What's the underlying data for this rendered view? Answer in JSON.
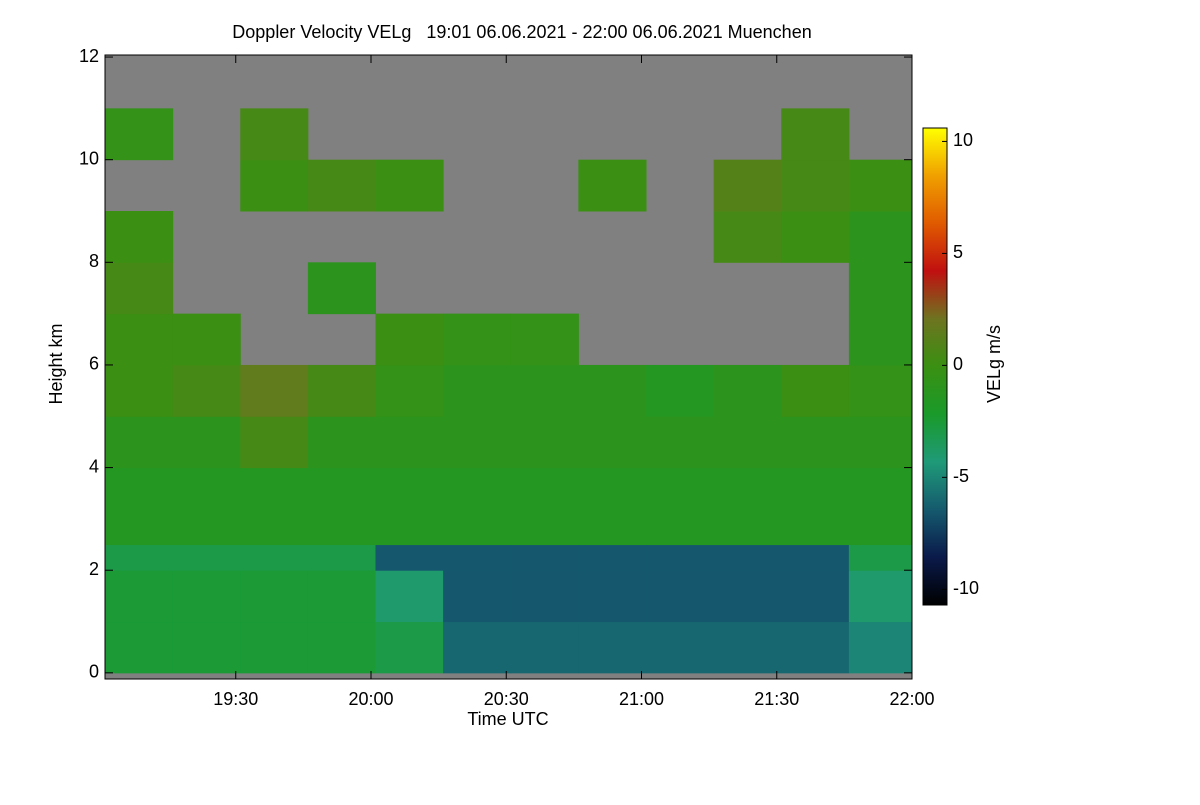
{
  "chart_data": {
    "type": "heatmap",
    "title": "Doppler Velocity VELg   19:01 06.06.2021 - 22:00 06.06.2021 Muenchen",
    "x_label": "Time UTC",
    "y_label": "Height km",
    "colorbar_label": "VELg m/s",
    "background": "#808080",
    "xlim": [
      1141,
      1320
    ],
    "xticks": [
      {
        "value": 1170,
        "label": "19:30"
      },
      {
        "value": 1200,
        "label": "20:00"
      },
      {
        "value": 1230,
        "label": "20:30"
      },
      {
        "value": 1260,
        "label": "21:00"
      },
      {
        "value": 1290,
        "label": "21:30"
      },
      {
        "value": 1320,
        "label": "22:00"
      }
    ],
    "ylim": [
      -0.12,
      12.04
    ],
    "yticks": [
      0,
      2,
      4,
      6,
      8,
      10,
      12
    ],
    "zlim": [
      -10.7,
      10.6
    ],
    "zticks": [
      -10,
      -5,
      0,
      5,
      10
    ],
    "colormap": [
      "#000000",
      "#0a1a4a",
      "#155a6e",
      "#1f9a78",
      "#1a9a2a",
      "#3a9012",
      "#6e7420",
      "#c01010",
      "#e05a00",
      "#f0a000",
      "#ffff00"
    ],
    "x_bins": [
      1141,
      1156,
      1171,
      1186,
      1201,
      1216,
      1231,
      1246,
      1261,
      1276,
      1291,
      1306,
      1320
    ],
    "y_bins": [
      0,
      1,
      2,
      2.5,
      3,
      4,
      5,
      6,
      7,
      8,
      9,
      10,
      11,
      12
    ],
    "z": [
      [
        -2.5,
        -2.5,
        -2.5,
        -2.5,
        -3,
        -6,
        -6,
        -6,
        -6,
        -6,
        -6,
        -5
      ],
      [
        -2.5,
        -2.5,
        -2.5,
        -2.5,
        -4,
        -6.5,
        -6.5,
        -6.5,
        -6.5,
        -6.5,
        -6.5,
        -4
      ],
      [
        -3,
        -3,
        -3,
        -3,
        -6.5,
        -6.5,
        -6.5,
        -6.5,
        -6.5,
        -6.5,
        -6.5,
        -3
      ],
      [
        -1.5,
        -1.5,
        -1.5,
        -1.5,
        -1.5,
        -1.5,
        -1.5,
        -1.5,
        -1.5,
        -1.5,
        -1.5,
        -1.5
      ],
      [
        -1.5,
        -1.5,
        -1.5,
        -1.5,
        -1.5,
        -1.5,
        -1.5,
        -1.5,
        -1.5,
        -1.5,
        -1.5,
        -1.5
      ],
      [
        -1,
        -1,
        0.5,
        -1,
        -1,
        -1,
        -1,
        -1,
        -1,
        -1,
        -1,
        -1
      ],
      [
        0,
        0.5,
        1.5,
        0.5,
        -0.5,
        -1,
        -1,
        -1,
        -1.5,
        -1,
        0,
        -0.5
      ],
      [
        0,
        0,
        null,
        null,
        0,
        -0.5,
        -0.5,
        null,
        null,
        null,
        null,
        -1
      ],
      [
        0.5,
        null,
        null,
        -1,
        null,
        null,
        null,
        null,
        null,
        null,
        null,
        -1
      ],
      [
        0,
        null,
        null,
        null,
        null,
        null,
        null,
        null,
        null,
        0.5,
        0,
        -1
      ],
      [
        null,
        null,
        0,
        0.5,
        0,
        null,
        null,
        0,
        null,
        1,
        0.5,
        0
      ],
      [
        -0.5,
        null,
        0.5,
        null,
        null,
        null,
        null,
        null,
        null,
        null,
        0.5,
        null
      ],
      [
        null,
        null,
        null,
        null,
        null,
        null,
        null,
        null,
        null,
        null,
        null,
        null
      ]
    ]
  }
}
